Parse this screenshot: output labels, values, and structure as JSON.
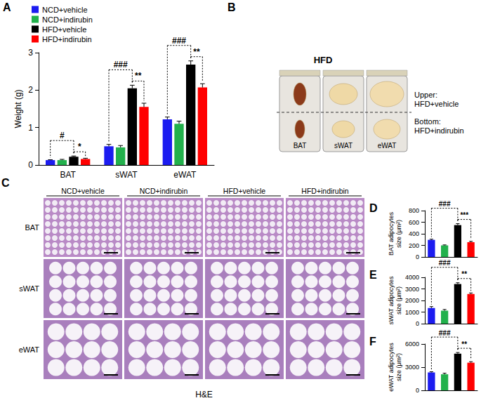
{
  "chart_data": [
    {
      "panel": "A",
      "type": "bar",
      "ylabel": "Weight (g)",
      "categories": [
        "BAT",
        "sWAT",
        "eWAT"
      ],
      "series": [
        {
          "name": "NCD+vehicle",
          "color": "#1c1cf0",
          "values": [
            0.13,
            0.5,
            1.22
          ],
          "errors": [
            0.01,
            0.05,
            0.06
          ]
        },
        {
          "name": "NCD+indirubin",
          "color": "#22b14c",
          "values": [
            0.13,
            0.47,
            1.1
          ],
          "errors": [
            0.02,
            0.05,
            0.07
          ]
        },
        {
          "name": "HFD+vehicle",
          "color": "#000000",
          "values": [
            0.22,
            2.05,
            2.68
          ],
          "errors": [
            0.02,
            0.08,
            0.1
          ]
        },
        {
          "name": "HFD+indirubin",
          "color": "#ff0000",
          "values": [
            0.16,
            1.55,
            2.07
          ],
          "errors": [
            0.02,
            0.1,
            0.1
          ]
        }
      ],
      "ylim": [
        0,
        3
      ],
      "yticks": [
        0,
        1,
        2,
        3
      ],
      "grid": false,
      "legend": "top-left",
      "significance": [
        {
          "category": "BAT",
          "from": "NCD+vehicle",
          "to": "HFD+vehicle",
          "label": "#"
        },
        {
          "category": "BAT",
          "from": "HFD+vehicle",
          "to": "HFD+indirubin",
          "label": "*"
        },
        {
          "category": "sWAT",
          "from": "NCD+vehicle",
          "to": "HFD+vehicle",
          "label": "###"
        },
        {
          "category": "sWAT",
          "from": "HFD+vehicle",
          "to": "HFD+indirubin",
          "label": "**"
        },
        {
          "category": "eWAT",
          "from": "NCD+vehicle",
          "to": "HFD+vehicle",
          "label": "###"
        },
        {
          "category": "eWAT",
          "from": "HFD+vehicle",
          "to": "HFD+indirubin",
          "label": "**"
        }
      ]
    },
    {
      "panel": "D",
      "type": "bar",
      "ylabel": "BAT adipocytes\nsize (μm²)",
      "categories": [
        null,
        null,
        null,
        null
      ],
      "values": [
        295,
        200,
        550,
        255
      ],
      "errors": [
        12,
        8,
        25,
        15
      ],
      "colors": [
        "#1c1cf0",
        "#22b14c",
        "#000000",
        "#ff0000"
      ],
      "ylim": [
        0,
        800
      ],
      "yticks": [
        0,
        200,
        400,
        600,
        800
      ],
      "grid": false,
      "tick_labels": "y",
      "significance": [
        {
          "from": 0,
          "to": 2,
          "label": "###"
        },
        {
          "from": 2,
          "to": 3,
          "label": "***"
        }
      ]
    },
    {
      "panel": "E",
      "type": "bar",
      "ylabel": "sWAT adipocytes\nsize (μm²)",
      "categories": [
        null,
        null,
        null,
        null
      ],
      "values": [
        1350,
        1120,
        3420,
        2560
      ],
      "errors": [
        120,
        100,
        110,
        90
      ],
      "colors": [
        "#1c1cf0",
        "#22b14c",
        "#000000",
        "#ff0000"
      ],
      "ylim": [
        0,
        4000
      ],
      "yticks": [
        0,
        1000,
        2000,
        3000,
        4000
      ],
      "grid": false,
      "tick_labels": "y",
      "significance": [
        {
          "from": 0,
          "to": 2,
          "label": "###"
        },
        {
          "from": 2,
          "to": 3,
          "label": "**"
        }
      ]
    },
    {
      "panel": "F",
      "type": "bar",
      "ylabel": "eWAT adipocytes\nsize (μm²)",
      "categories": [
        null,
        null,
        null,
        null
      ],
      "values": [
        2320,
        2080,
        4750,
        3580
      ],
      "errors": [
        90,
        140,
        150,
        130
      ],
      "colors": [
        "#1c1cf0",
        "#22b14c",
        "#000000",
        "#ff0000"
      ],
      "ylim": [
        0,
        6000
      ],
      "yticks": [
        0,
        3000,
        6000
      ],
      "grid": false,
      "tick_labels": "y",
      "significance": [
        {
          "from": 0,
          "to": 2,
          "label": "###"
        },
        {
          "from": 2,
          "to": 3,
          "label": "**"
        }
      ]
    }
  ],
  "panel_b": {
    "panel": "B",
    "title": "HFD",
    "tissues": [
      "BAT",
      "sWAT",
      "eWAT"
    ],
    "key": [
      [
        "Upper:",
        "HFD+vehicle"
      ],
      [
        "Bottom:",
        "HFD+indirubin"
      ]
    ]
  },
  "panel_c": {
    "panel": "C",
    "columns": [
      "NCD+vehicle",
      "NCD+indirubin",
      "HFD+vehicle",
      "HFD+indirubin"
    ],
    "rows": [
      "BAT",
      "sWAT",
      "eWAT"
    ],
    "stain": "H&E"
  }
}
